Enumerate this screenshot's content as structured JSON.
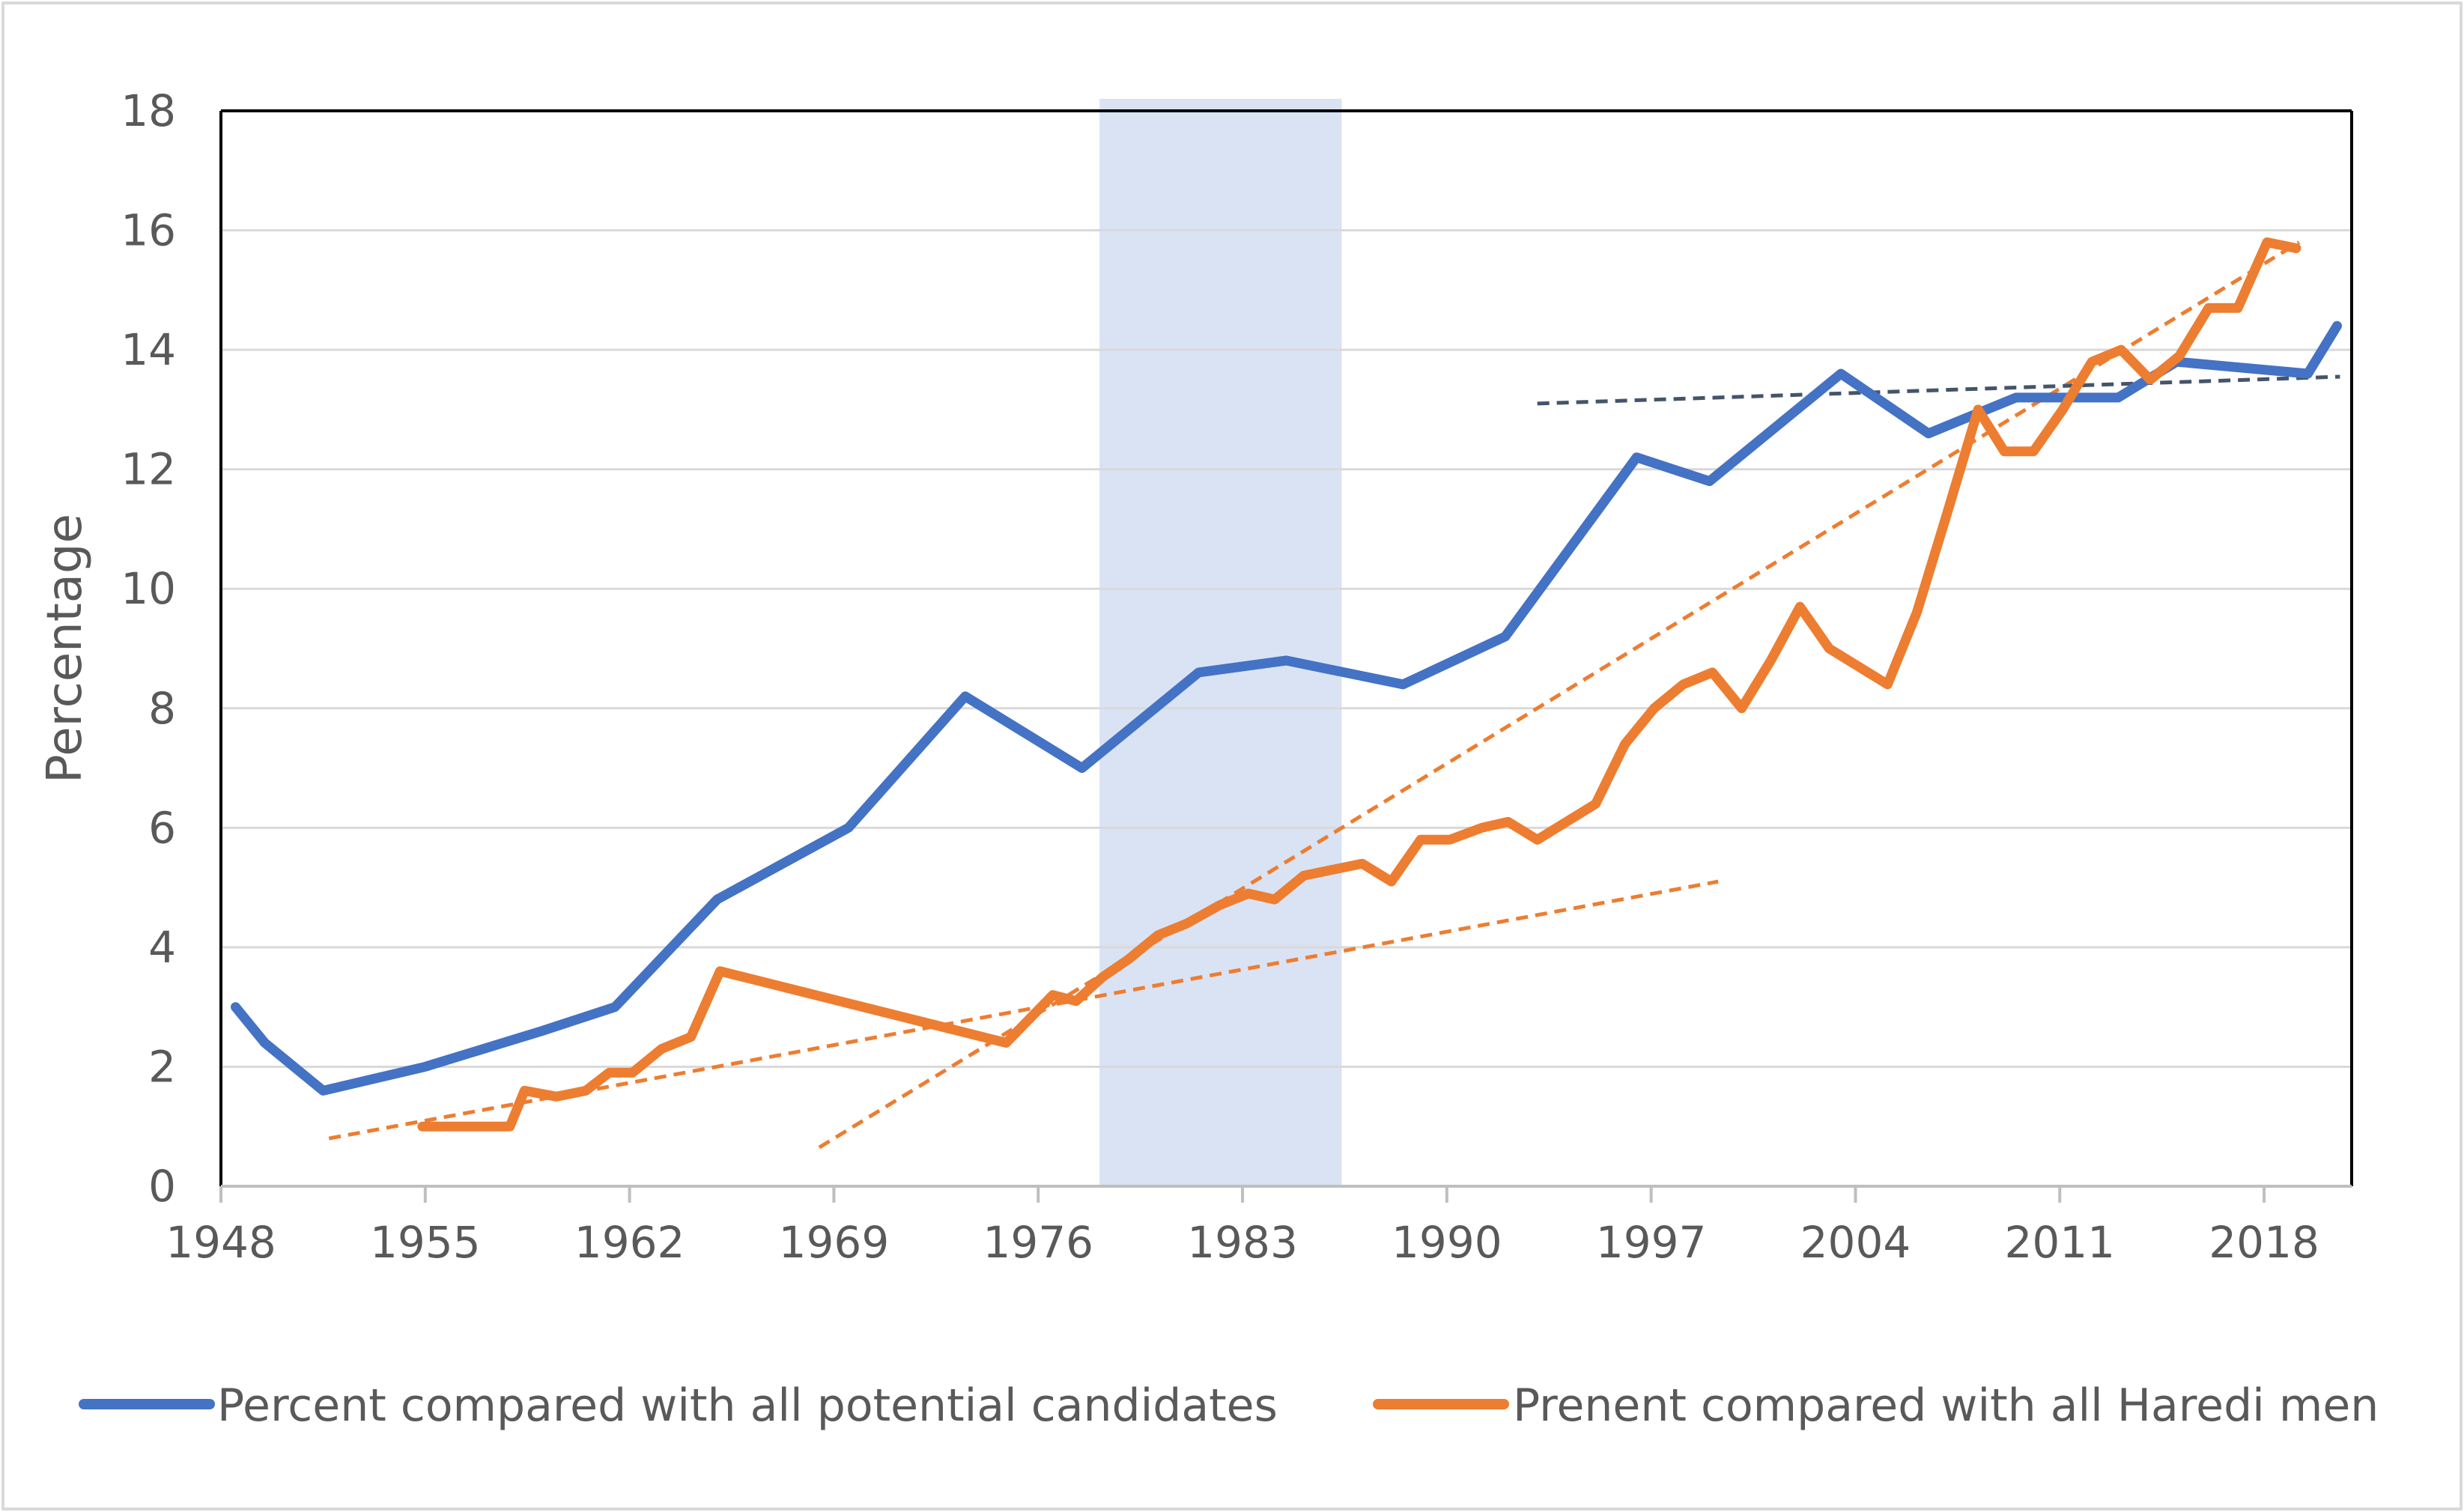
{
  "chart_data": {
    "type": "line",
    "title": "",
    "xlabel": "",
    "ylabel": "Percentage",
    "xlim": [
      1948,
      2021
    ],
    "ylim": [
      0,
      18
    ],
    "xticks": [
      1948,
      1955,
      1962,
      1969,
      1976,
      1983,
      1990,
      1997,
      2004,
      2011,
      2018
    ],
    "yticks": [
      0,
      2,
      4,
      6,
      8,
      10,
      12,
      14,
      16,
      18
    ],
    "grid": "horizontal",
    "legend_position": "bottom",
    "highlight_band": {
      "x_start": 1978.1,
      "x_end": 1986.4,
      "color": "#d6e0f3"
    },
    "series": [
      {
        "name": "Percent compared with all potential candidates",
        "color": "#4472c4",
        "x": [
          1948.5,
          1949.5,
          1951.5,
          1955,
          1959,
          1961.5,
          1965,
          1969.5,
          1973.5,
          1977.5,
          1981.5,
          1984.5,
          1988.5,
          1992,
          1996.5,
          1999,
          2003.5,
          2006.5,
          2009.5,
          2013,
          2015,
          2019.5,
          2020.5
        ],
        "values": [
          3.0,
          2.4,
          1.6,
          2.0,
          2.6,
          3.0,
          4.8,
          6.0,
          8.2,
          7.0,
          8.6,
          8.8,
          8.4,
          9.2,
          12.2,
          11.8,
          13.6,
          12.6,
          13.2,
          13.2,
          13.8,
          13.6,
          14.4
        ]
      },
      {
        "name": "Prenent compared with all Haredi men",
        "color": "#ed7d31",
        "x": [
          1954.9,
          1956,
          1957.9,
          1958.4,
          1959.5,
          1960.5,
          1961.3,
          1962.1,
          1963.1,
          1964.1,
          1965.1,
          1974.9,
          1976.5,
          1977.3,
          1978.2,
          1979.1,
          1980.1,
          1981.1,
          1982.2,
          1983.2,
          1984.1,
          1985.1,
          1987.1,
          1988.1,
          1989.1,
          1990.1,
          1991.2,
          1992.1,
          1993.1,
          1995.1,
          1996.1,
          1997.1,
          1998.1,
          1999.1,
          2000.1,
          2001.1,
          2002.1,
          2003.1,
          2005.1,
          2006.1,
          2007.1,
          2008.2,
          2009.1,
          2010.1,
          2011.1,
          2012.1,
          2013.1,
          2014.1,
          2015.1,
          2016.1,
          2017.1,
          2018.1,
          2019.1
        ],
        "values": [
          1.0,
          1.0,
          1.0,
          1.6,
          1.5,
          1.6,
          1.9,
          1.9,
          2.3,
          2.5,
          3.6,
          2.4,
          3.2,
          3.1,
          3.5,
          3.8,
          4.2,
          4.4,
          4.7,
          4.9,
          4.8,
          5.2,
          5.4,
          5.1,
          5.8,
          5.8,
          6.0,
          6.1,
          5.8,
          6.4,
          7.4,
          8.0,
          8.4,
          8.6,
          8.0,
          8.8,
          9.7,
          9.0,
          8.4,
          9.6,
          11.2,
          13.0,
          12.3,
          12.3,
          13.0,
          13.8,
          14.0,
          13.5,
          13.9,
          14.7,
          14.7,
          15.8,
          15.7
        ]
      }
    ],
    "trendlines": [
      {
        "color": "#ed7d31",
        "x": [
          1951.7,
          1999.3
        ],
        "values": [
          0.8,
          5.1
        ]
      },
      {
        "color": "#ed7d31",
        "x": [
          1968.5,
          2019.2
        ],
        "values": [
          0.65,
          15.8
        ]
      },
      {
        "color": "#44546a",
        "x": [
          1993.1,
          2020.6
        ],
        "values": [
          13.1,
          13.55
        ]
      }
    ]
  }
}
